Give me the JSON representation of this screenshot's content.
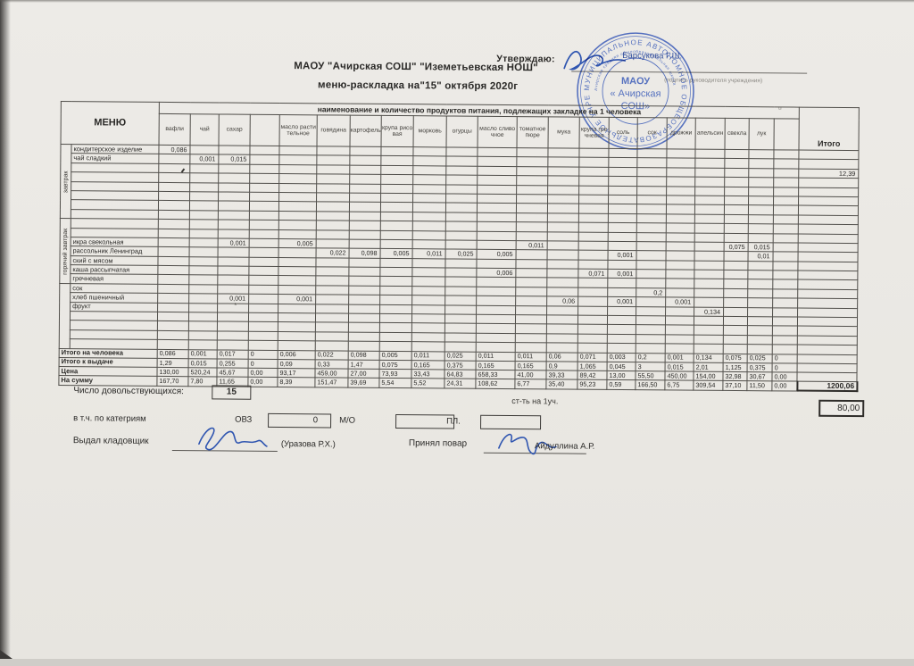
{
  "header": {
    "approve_label": "Утверждаю:",
    "approver_name": "Барсукова Г.Ш.",
    "approver_caption": "(подпись руководителя учреждения)",
    "org_line": "МАОУ \"Ачирская СОШ\" \"Иземетьевская НОШ\"",
    "title_line": "меню-раскладка на\"15\" октября 2020г"
  },
  "stamp": {
    "ring_text": "МУНИЦИПАЛЬНОЕ АВТОНОМНОЕ ОБЩЕОБРАЗОВАТЕЛЬНОЕ УЧРЕЖДЕНИЕ • ОГРН 102 • ",
    "inner_ring_text": "Ачирская средняя общеобразовательная школа",
    "center_line1": "МАОУ",
    "center_line2": "« Ачирская",
    "center_line3": "СОШ»"
  },
  "table": {
    "menu_header": "МЕНЮ",
    "products_header": "наименование и количество продуктов питания, подлежащих закладке на 1 человека",
    "itogo_header": "Итого",
    "columns": [
      "вафли",
      "чай",
      "сахар",
      "",
      "масло растительное",
      "говядина",
      "картофель",
      "крупа рисовая",
      "морковь",
      "огурцы",
      "масло сливочное",
      "томатное пюре",
      "мука",
      "крупа гречневая",
      "соль",
      "сок",
      "дрожжи",
      "апельсин",
      "свекла",
      "лук",
      ""
    ],
    "rows": [
      {
        "sec": "завтрак",
        "span": 8,
        "dish": "кондитерское изделие",
        "v": {
          "0": "0,086"
        }
      },
      {
        "dish": "чай сладкий",
        "v": {
          "1": "0,001",
          "2": "0,015"
        }
      },
      {
        "dish": "",
        "itogo": "12,39"
      },
      {
        "dish": ""
      },
      {
        "dish": ""
      },
      {
        "dish": ""
      },
      {
        "dish": ""
      },
      {
        "dish": ""
      },
      {
        "sec": "горячий завтрак",
        "span": 7,
        "dish": ""
      },
      {
        "dish": ""
      },
      {
        "dish": "икра свекольная",
        "v": {
          "2": "0,001",
          "4": "0,005",
          "11": "0,011",
          "18": "0,075",
          "19": "0,015"
        }
      },
      {
        "dish": "рассольник Ленинград",
        "v": {
          "5": "0,022",
          "6": "0,098",
          "7": "0,005",
          "8": "0,011",
          "9": "0,025",
          "10": "0,005",
          "14": "0,001",
          "19": "0,01"
        }
      },
      {
        "dish": "ский с мясом"
      },
      {
        "dish": "каша рассыпчатая",
        "v": {
          "10": "0,006",
          "13": "0,071",
          "14": "0,001"
        }
      },
      {
        "dish": "гречневая"
      },
      {
        "sec": "",
        "span": 7,
        "dish": "сок",
        "v": {
          "15": "0,2"
        }
      },
      {
        "dish": "хлеб пшеничный",
        "v": {
          "2": "0,001",
          "4": "0,001",
          "12": "0,06",
          "14": "0,001",
          "16": "0,001"
        }
      },
      {
        "dish": "фрукт",
        "v": {
          "17": "0,134"
        }
      },
      {
        "dish": ""
      },
      {
        "dish": ""
      },
      {
        "dish": ""
      },
      {
        "dish": ""
      }
    ],
    "totals": [
      {
        "label": "Итого на человека",
        "v": [
          "0,086",
          "0,001",
          "0,017",
          "0",
          "0,006",
          "0,022",
          "0,098",
          "0,005",
          "0,011",
          "0,025",
          "0,011",
          "0,011",
          "0,06",
          "0,071",
          "0,003",
          "0,2",
          "0,001",
          "0,134",
          "0,075",
          "0,025",
          "0"
        ]
      },
      {
        "label": "Итого к выдаче",
        "v": [
          "1,29",
          "0,015",
          "0,255",
          "0",
          "0,09",
          "0,33",
          "1,47",
          "0,075",
          "0,165",
          "0,375",
          "0,165",
          "0,165",
          "0,9",
          "1,065",
          "0,045",
          "3",
          "0,015",
          "2,01",
          "1,125",
          "0,375",
          "0"
        ]
      },
      {
        "label": "Цена",
        "v": [
          "130,00",
          "520,24",
          "45,67",
          "0,00",
          "93,17",
          "459,00",
          "27,00",
          "73,93",
          "33,43",
          "64,83",
          "658,33",
          "41,00",
          "39,33",
          "89,42",
          "13,00",
          "55,50",
          "450,00",
          "154,00",
          "32,98",
          "30,67",
          "0,00"
        ]
      },
      {
        "label": "На сумму",
        "v": [
          "167,70",
          "7,80",
          "11,65",
          "0,00",
          "8,39",
          "151,47",
          "39,69",
          "5,54",
          "5,52",
          "24,31",
          "108,62",
          "6,77",
          "35,40",
          "95,23",
          "0,59",
          "166,50",
          "6,75",
          "309,54",
          "37,10",
          "11,50",
          "0,00"
        ],
        "itogo": "1200,06"
      }
    ]
  },
  "footer": {
    "count_label": "Число довольствующихся:",
    "count_value": "15",
    "cost_label": "ст-ть на 1уч.",
    "cost_per_student": "80,00",
    "categories_label": "в т.ч. по категриям",
    "ovz_label": "ОВЗ",
    "ovz_value": "0",
    "mo_label": "М/О",
    "mo_value": "",
    "pl_label": "ПЛ.",
    "pl_value": "",
    "issued_label": "Выдал кладовщик",
    "issued_name": "(Уразова Р.Х.)",
    "received_label": "Принял повар",
    "received_name": "Айдуллина А.Р."
  },
  "marks": {
    "asterisk": "*",
    "top_right": "¤"
  }
}
